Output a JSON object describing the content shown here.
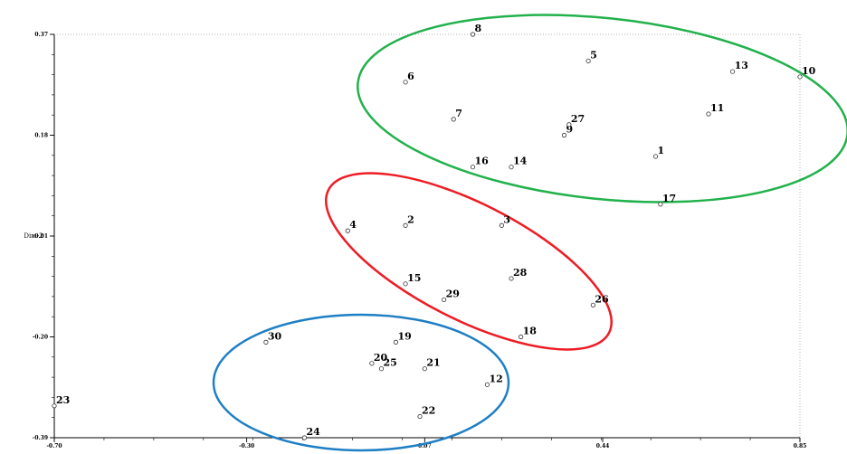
{
  "chart_data": {
    "type": "scatter",
    "title": "",
    "xlabel": "",
    "ylabel": "Dim-2",
    "xlim": [
      -0.7,
      0.85
    ],
    "ylim": [
      -0.39,
      0.37
    ],
    "x_ticks": [
      {
        "value": -0.7,
        "label": "-0.70"
      },
      {
        "value": -0.3,
        "label": "-0.30"
      },
      {
        "value": 0.07,
        "label": "0.07"
      },
      {
        "value": 0.44,
        "label": "0.44"
      },
      {
        "value": 0.85,
        "label": "0.85"
      }
    ],
    "y_ticks": [
      {
        "value": 0.37,
        "label": "0.37"
      },
      {
        "value": 0.18,
        "label": "0.18"
      },
      {
        "value": -0.01,
        "label": "-0.01"
      },
      {
        "value": -0.2,
        "label": "-0.20"
      },
      {
        "value": -0.39,
        "label": "-0.39"
      }
    ],
    "grid": false,
    "points": [
      {
        "label": "1",
        "x": 0.55,
        "y": 0.14
      },
      {
        "label": "2",
        "x": 0.03,
        "y": 0.01
      },
      {
        "label": "3",
        "x": 0.23,
        "y": 0.01
      },
      {
        "label": "4",
        "x": -0.09,
        "y": 0.0
      },
      {
        "label": "5",
        "x": 0.41,
        "y": 0.32
      },
      {
        "label": "6",
        "x": 0.03,
        "y": 0.28
      },
      {
        "label": "7",
        "x": 0.13,
        "y": 0.21
      },
      {
        "label": "8",
        "x": 0.17,
        "y": 0.37
      },
      {
        "label": "9",
        "x": 0.36,
        "y": 0.18
      },
      {
        "label": "10",
        "x": 0.85,
        "y": 0.29
      },
      {
        "label": "11",
        "x": 0.66,
        "y": 0.22
      },
      {
        "label": "12",
        "x": 0.2,
        "y": -0.29
      },
      {
        "label": "13",
        "x": 0.71,
        "y": 0.3
      },
      {
        "label": "14",
        "x": 0.25,
        "y": 0.12
      },
      {
        "label": "15",
        "x": 0.03,
        "y": -0.1
      },
      {
        "label": "16",
        "x": 0.17,
        "y": 0.12
      },
      {
        "label": "17",
        "x": 0.56,
        "y": 0.05
      },
      {
        "label": "18",
        "x": 0.27,
        "y": -0.2
      },
      {
        "label": "19",
        "x": 0.01,
        "y": -0.21
      },
      {
        "label": "20",
        "x": -0.04,
        "y": -0.25
      },
      {
        "label": "21",
        "x": 0.07,
        "y": -0.26
      },
      {
        "label": "22",
        "x": 0.06,
        "y": -0.35
      },
      {
        "label": "23",
        "x": -0.7,
        "y": -0.33
      },
      {
        "label": "24",
        "x": -0.18,
        "y": -0.39
      },
      {
        "label": "25",
        "x": -0.02,
        "y": -0.26
      },
      {
        "label": "26",
        "x": 0.42,
        "y": -0.14
      },
      {
        "label": "27",
        "x": 0.37,
        "y": 0.2
      },
      {
        "label": "28",
        "x": 0.25,
        "y": -0.09
      },
      {
        "label": "29",
        "x": 0.11,
        "y": -0.13
      },
      {
        "label": "30",
        "x": -0.26,
        "y": -0.21
      }
    ],
    "clusters": [
      {
        "color": "#22b14c",
        "members": [
          "1",
          "5",
          "6",
          "7",
          "8",
          "9",
          "10",
          "11",
          "13",
          "14",
          "16",
          "17",
          "27"
        ]
      },
      {
        "color": "#ee1c24",
        "members": [
          "2",
          "3",
          "4",
          "15",
          "18",
          "26",
          "28",
          "29"
        ]
      },
      {
        "color": "#1f7fc4",
        "members": [
          "12",
          "19",
          "20",
          "21",
          "22",
          "24",
          "25",
          "30"
        ]
      }
    ]
  }
}
